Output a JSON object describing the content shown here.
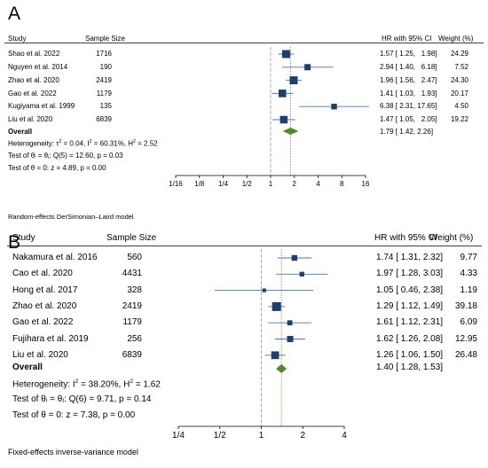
{
  "chart_data": [
    {
      "panel_label": "A",
      "type": "forest",
      "columns": {
        "study": "Study",
        "sample_size": "Sample Size",
        "ci": "HR with 95% CI",
        "weight": "Weight (%)"
      },
      "rows": [
        {
          "study": "Shao et al. 2022",
          "n": "1716",
          "hr": 1.57,
          "lo": 1.25,
          "hi": 1.98,
          "ci_text": "1.57 [ 1.25,   1.98]",
          "weight": "24.29"
        },
        {
          "study": "Nguyen et al. 2014",
          "n": "190",
          "hr": 2.94,
          "lo": 1.4,
          "hi": 6.18,
          "ci_text": "2.94 [ 1.40,   6.18]",
          "weight": "7.52"
        },
        {
          "study": "Zhao et al. 2020",
          "n": "2419",
          "hr": 1.96,
          "lo": 1.56,
          "hi": 2.47,
          "ci_text": "1.96 [ 1.56,   2.47]",
          "weight": "24.30"
        },
        {
          "study": "Gao et al. 2022",
          "n": "1179",
          "hr": 1.41,
          "lo": 1.03,
          "hi": 1.93,
          "ci_text": "1.41 [ 1.03,   1.93]",
          "weight": "20.17"
        },
        {
          "study": "Kugiyama et al. 1999",
          "n": "135",
          "hr": 6.38,
          "lo": 2.31,
          "hi": 17.65,
          "ci_text": "6.38 [ 2.31, 17.65]",
          "weight": "4.50"
        },
        {
          "study": "Liu et al. 2020",
          "n": "6839",
          "hr": 1.47,
          "lo": 1.05,
          "hi": 2.05,
          "ci_text": "1.47 [ 1.05,   2.05]",
          "weight": "19.22"
        }
      ],
      "overall": {
        "label": "Overall",
        "hr": 1.79,
        "lo": 1.42,
        "hi": 2.26,
        "ci_text": "1.79 [ 1.42,   2.26]"
      },
      "stats": {
        "heterogeneity": "Heterogeneity: τ",
        "heterogeneity_a": " = 0.04, I",
        "heterogeneity_b": " = 60.31%, H",
        "heterogeneity_c": " = 2.52",
        "sup": "2",
        "q_test": "Test of θᵢ = θⱼ: Q(5) = 12.60, p = 0.03",
        "z_test": "Test of θ = 0: z = 4.89, p = 0.00"
      },
      "ticks": [
        "1/16",
        "1/8",
        "1/4",
        "1/2",
        "1",
        "2",
        "4",
        "8",
        "16"
      ],
      "tick_values": [
        0.0625,
        0.125,
        0.25,
        0.5,
        1,
        2,
        4,
        8,
        16
      ],
      "xlim": [
        0.0625,
        16
      ],
      "scale": "log",
      "footnote": "Random-effects DerSimonian–Laird model",
      "colors": {
        "marker": "#1f3f66",
        "line": "#4a76ad",
        "diamond": "#4f8b2e",
        "null_line": "#9aa4b8",
        "overall_line": "#b5892e"
      }
    },
    {
      "panel_label": "B",
      "type": "forest",
      "columns": {
        "study": "Study",
        "sample_size": "Sample Size",
        "ci": "HR with 95% CI",
        "weight": "Weight (%)"
      },
      "rows": [
        {
          "study": "Nakamura et al. 2016",
          "n": "560",
          "hr": 1.74,
          "lo": 1.31,
          "hi": 2.32,
          "ci_text": "1.74 [ 1.31, 2.32]",
          "weight": "9.77"
        },
        {
          "study": "Cao et al. 2020",
          "n": "4431",
          "hr": 1.97,
          "lo": 1.28,
          "hi": 3.03,
          "ci_text": "1.97 [ 1.28, 3.03]",
          "weight": "4.33"
        },
        {
          "study": "Hong et al. 2017",
          "n": "328",
          "hr": 1.05,
          "lo": 0.46,
          "hi": 2.38,
          "ci_text": "1.05 [ 0.46, 2.38]",
          "weight": "1.19"
        },
        {
          "study": "Zhao et al. 2020",
          "n": "2419",
          "hr": 1.29,
          "lo": 1.12,
          "hi": 1.49,
          "ci_text": "1.29 [ 1.12, 1.49]",
          "weight": "39.18"
        },
        {
          "study": "Gao et al. 2022",
          "n": "1179",
          "hr": 1.61,
          "lo": 1.12,
          "hi": 2.31,
          "ci_text": "1.61 [ 1.12, 2.31]",
          "weight": "6.09"
        },
        {
          "study": "Fujihara et al. 2019",
          "n": "256",
          "hr": 1.62,
          "lo": 1.26,
          "hi": 2.08,
          "ci_text": "1.62 [ 1.26, 2.08]",
          "weight": "12.95"
        },
        {
          "study": "Liu et al. 2020",
          "n": "6839",
          "hr": 1.26,
          "lo": 1.06,
          "hi": 1.5,
          "ci_text": "1.26 [ 1.06, 1.50]",
          "weight": "26.48"
        }
      ],
      "overall": {
        "label": "Overall",
        "hr": 1.4,
        "lo": 1.28,
        "hi": 1.53,
        "ci_text": "1.40 [ 1.28, 1.53]"
      },
      "stats": {
        "heterogeneity": "Heterogeneity: I",
        "heterogeneity_a": " = 38.20%, H",
        "heterogeneity_b": " = 1.62",
        "sup": "2",
        "q_test": "Test of θᵢ = θⱼ: Q(6) = 9.71, p = 0.14",
        "z_test": "Test of θ = 0: z = 7.38, p = 0.00"
      },
      "ticks": [
        "1/4",
        "1/2",
        "1",
        "2",
        "4"
      ],
      "tick_values": [
        0.25,
        0.5,
        1,
        2,
        4
      ],
      "xlim": [
        0.25,
        4
      ],
      "scale": "log",
      "footnote": "Fixed-effects inverse-variance model",
      "colors": {
        "marker": "#1f3f66",
        "line": "#4a76ad",
        "diamond": "#4f8b2e",
        "null_line": "#9aa4b8",
        "overall_line": "#b5892e"
      }
    }
  ]
}
